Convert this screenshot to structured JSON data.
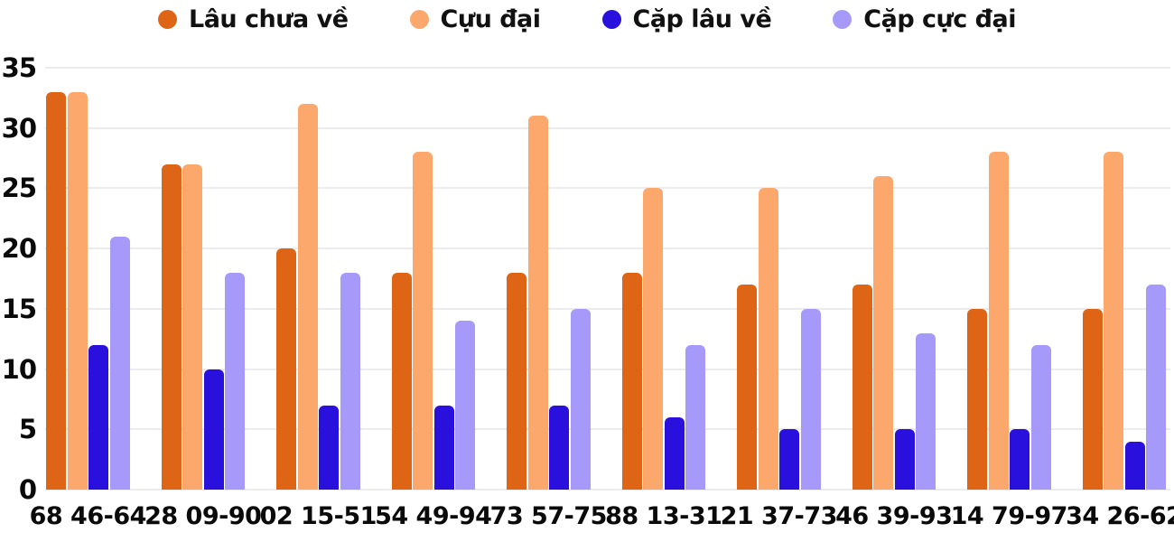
{
  "chart_data": {
    "type": "bar",
    "title": "",
    "xlabel": "",
    "ylabel": "",
    "categories": [
      "68 46-64",
      "28 09-90",
      "02 15-51",
      "54 49-94",
      "73 57-75",
      "88 13-31",
      "21 37-73",
      "46 39-93",
      "14 79-97",
      "34 26-62"
    ],
    "series": [
      {
        "name": "Lâu chưa về",
        "color": "#de6515",
        "values": [
          33,
          27,
          20,
          18,
          18,
          18,
          17,
          17,
          15,
          15
        ]
      },
      {
        "name": "Cựu đại",
        "color": "#fca76c",
        "values": [
          33,
          27,
          32,
          28,
          31,
          25,
          25,
          26,
          28,
          28
        ]
      },
      {
        "name": "Cặp lâu về",
        "color": "#2a10dc",
        "values": [
          12,
          10,
          7,
          7,
          7,
          6,
          5,
          5,
          5,
          4
        ]
      },
      {
        "name": "Cặp cực đại",
        "color": "#a799fa",
        "values": [
          21,
          18,
          18,
          14,
          15,
          12,
          15,
          13,
          12,
          17
        ]
      }
    ],
    "ylim": [
      0,
      35
    ],
    "yticks": [
      0,
      5,
      10,
      15,
      20,
      25,
      30,
      35
    ],
    "grid": true,
    "legend_position": "top"
  },
  "colors": {
    "background": "#ffffff",
    "gridline": "#ececec",
    "axis_text": "#0a0a0a",
    "legend_text": "#111111"
  }
}
